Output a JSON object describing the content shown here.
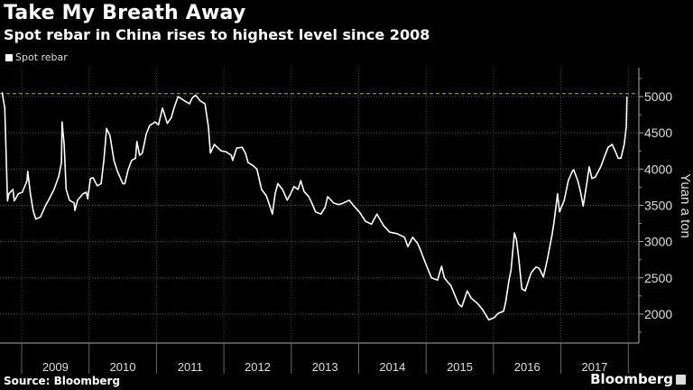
{
  "chart_data": {
    "type": "line",
    "title": "Take My Breath Away",
    "subtitle": "Spot rebar in China rises to highest level since 2008",
    "legend": [
      "Spot rebar"
    ],
    "legend_position": "top-left",
    "ylabel": "Yuan a ton",
    "xlabel": "",
    "ylim": [
      1600,
      5400
    ],
    "xlim": [
      2008.68,
      2018.0
    ],
    "yticks": [
      2000,
      2500,
      3000,
      3500,
      4000,
      4500,
      5000
    ],
    "ytick_labels": [
      "2000",
      "2500",
      "3000",
      "3500",
      "4000",
      "4500",
      "5000"
    ],
    "xtick_labels": [
      "2009",
      "2010",
      "2011",
      "2012",
      "2013",
      "2014",
      "2015",
      "2016",
      "2017"
    ],
    "grid": true,
    "reference_line": {
      "value": 5040,
      "color": "#8fbf2f",
      "style": "dashed"
    },
    "series": [
      {
        "name": "Spot rebar",
        "color": "#ffffff",
        "x": [
          2008.71,
          2008.75,
          2008.79,
          2008.81,
          2008.87,
          2008.89,
          2008.95,
          2009.01,
          2009.08,
          2009.09,
          2009.13,
          2009.17,
          2009.21,
          2009.28,
          2009.35,
          2009.41,
          2009.48,
          2009.55,
          2009.59,
          2009.6,
          2009.63,
          2009.66,
          2009.71,
          2009.78,
          2009.79,
          2009.83,
          2009.91,
          2009.96,
          2009.98,
          2010.02,
          2010.06,
          2010.12,
          2010.18,
          2010.22,
          2010.26,
          2010.31,
          2010.37,
          2010.42,
          2010.5,
          2010.53,
          2010.58,
          2010.63,
          2010.69,
          2010.71,
          2010.75,
          2010.79,
          2010.85,
          2010.9,
          2010.98,
          2011.03,
          2011.09,
          2011.16,
          2011.22,
          2011.26,
          2011.32,
          2011.42,
          2011.49,
          2011.53,
          2011.58,
          2011.65,
          2011.72,
          2011.77,
          2011.8,
          2011.86,
          2011.96,
          2012.03,
          2012.11,
          2012.13,
          2012.19,
          2012.27,
          2012.32,
          2012.36,
          2012.43,
          2012.49,
          2012.56,
          2012.63,
          2012.69,
          2012.72,
          2012.76,
          2012.8,
          2012.87,
          2012.94,
          2012.99,
          2013.04,
          2013.1,
          2013.14,
          2013.19,
          2013.26,
          2013.31,
          2013.36,
          2013.44,
          2013.5,
          2013.54,
          2013.63,
          2013.71,
          2013.77,
          2013.86,
          2013.93,
          2014.01,
          2014.1,
          2014.19,
          2014.27,
          2014.37,
          2014.46,
          2014.57,
          2014.68,
          2014.73,
          2014.8,
          2014.87,
          2014.91,
          2014.97,
          2015.08,
          2015.17,
          2015.23,
          2015.27,
          2015.37,
          2015.48,
          2015.53,
          2015.61,
          2015.67,
          2015.77,
          2015.84,
          2015.93,
          2016.01,
          2016.07,
          2016.15,
          2016.18,
          2016.23,
          2016.26,
          2016.31,
          2016.34,
          2016.38,
          2016.42,
          2016.47,
          2016.52,
          2016.56,
          2016.63,
          2016.68,
          2016.74,
          2016.8,
          2016.87,
          2016.9,
          2016.95,
          2016.98,
          2017.05,
          2017.11,
          2017.17,
          2017.19,
          2017.25,
          2017.29,
          2017.33,
          2017.38,
          2017.42,
          2017.46,
          2017.51,
          2017.59,
          2017.65,
          2017.7,
          2017.76,
          2017.81,
          2017.85,
          2017.89,
          2017.94,
          2017.97,
          2017.98
        ],
        "y": [
          5060,
          4840,
          3560,
          3660,
          3720,
          3560,
          3660,
          3680,
          3840,
          3970,
          3660,
          3430,
          3310,
          3340,
          3490,
          3590,
          3720,
          3900,
          4090,
          4650,
          4340,
          3720,
          3570,
          3530,
          3430,
          3570,
          3660,
          3680,
          3590,
          3870,
          3880,
          3770,
          3800,
          4120,
          4560,
          4460,
          4120,
          3970,
          3800,
          3800,
          3990,
          4120,
          4150,
          4380,
          4190,
          4220,
          4490,
          4600,
          4650,
          4610,
          4840,
          4630,
          4710,
          4840,
          5000,
          4940,
          4900,
          4980,
          5020,
          4940,
          4900,
          4590,
          4220,
          4340,
          4250,
          4240,
          4190,
          4120,
          4290,
          4300,
          4220,
          4090,
          4050,
          4000,
          3720,
          3630,
          3470,
          3380,
          3660,
          3800,
          3720,
          3570,
          3660,
          3760,
          3720,
          3840,
          3690,
          3620,
          3520,
          3410,
          3380,
          3470,
          3620,
          3530,
          3510,
          3530,
          3570,
          3490,
          3410,
          3280,
          3240,
          3380,
          3220,
          3130,
          3110,
          3060,
          2930,
          3060,
          2980,
          2900,
          2750,
          2500,
          2470,
          2660,
          2500,
          2390,
          2140,
          2100,
          2320,
          2220,
          2140,
          2060,
          1920,
          1950,
          2010,
          2040,
          2160,
          2470,
          2600,
          3120,
          3030,
          2720,
          2350,
          2320,
          2460,
          2570,
          2650,
          2630,
          2510,
          2760,
          3100,
          3280,
          3660,
          3410,
          3570,
          3840,
          3970,
          3990,
          3840,
          3690,
          3490,
          3780,
          4030,
          3870,
          3890,
          4030,
          4180,
          4300,
          4340,
          4240,
          4150,
          4150,
          4340,
          4590,
          5000
        ]
      }
    ],
    "source": "Source: Bloomberg",
    "brand": "Bloomberg"
  }
}
